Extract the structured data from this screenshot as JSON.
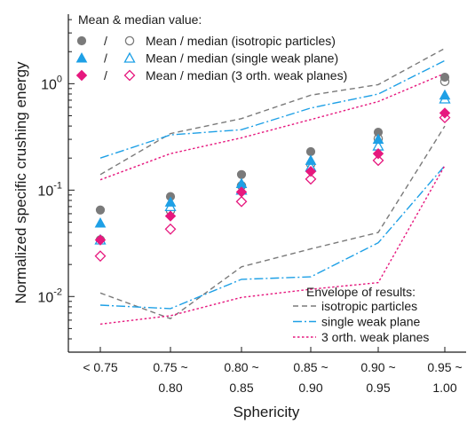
{
  "chart_data": {
    "type": "scatter",
    "xlabel": "Sphericity",
    "ylabel": "Normalized specific crushing energy",
    "yscale": "log",
    "ylim": [
      0.003,
      4.5
    ],
    "y_ticks": [
      {
        "value": 0.01,
        "base": "10",
        "exp": "-2"
      },
      {
        "value": 0.1,
        "base": "10",
        "exp": "-1"
      },
      {
        "value": 1,
        "base": "10",
        "exp": "0"
      }
    ],
    "categories": [
      {
        "line1": "< 0.75",
        "line2": ""
      },
      {
        "line1": "0.75 ~",
        "line2": "0.80"
      },
      {
        "line1": "0.80 ~",
        "line2": "0.85"
      },
      {
        "line1": "0.85 ~",
        "line2": "0.90"
      },
      {
        "line1": "0.90 ~",
        "line2": "0.95"
      },
      {
        "line1": "0.95 ~",
        "line2": "1.00"
      }
    ],
    "marker_legend": {
      "title": "Mean & median value:",
      "separator": "/",
      "placement": "top-left"
    },
    "envelope_legend": {
      "title": "Envelope of results:",
      "placement": "bottom-right"
    },
    "series": [
      {
        "name": "Mean / median (isotropic particles)",
        "envelope_name": "isotropic particles",
        "color": "#7a7a7a",
        "marker": "circle",
        "mean": [
          0.065,
          0.087,
          0.14,
          0.23,
          0.35,
          1.15
        ],
        "median": [
          0.034,
          0.064,
          0.11,
          0.175,
          0.305,
          1.05
        ],
        "envelope_upper": [
          0.14,
          0.34,
          0.47,
          0.78,
          0.98,
          2.15
        ],
        "envelope_lower": [
          0.0108,
          0.0062,
          0.019,
          0.028,
          0.04,
          0.4
        ],
        "envelope_dash": "6,4"
      },
      {
        "name": "Mean / median (single weak plane)",
        "envelope_name": "single weak plane",
        "color": "#1ea0e6",
        "marker": "triangle",
        "mean": [
          0.049,
          0.077,
          0.115,
          0.19,
          0.3,
          0.78
        ],
        "median": [
          0.034,
          0.07,
          0.1,
          0.165,
          0.26,
          0.72
        ],
        "envelope_upper": [
          0.2,
          0.33,
          0.37,
          0.59,
          0.8,
          1.65
        ],
        "envelope_lower": [
          0.0083,
          0.0077,
          0.0145,
          0.0153,
          0.032,
          0.17
        ],
        "envelope_dash": "10,3,2,3"
      },
      {
        "name": "Mean / median (3 orth. weak planes)",
        "envelope_name": "3 orth. weak planes",
        "color": "#e6187e",
        "marker": "diamond",
        "mean": [
          0.034,
          0.057,
          0.096,
          0.15,
          0.22,
          0.53
        ],
        "median": [
          0.024,
          0.043,
          0.078,
          0.127,
          0.19,
          0.48
        ],
        "envelope_upper": [
          0.125,
          0.22,
          0.31,
          0.46,
          0.68,
          1.25
        ],
        "envelope_lower": [
          0.0055,
          0.0066,
          0.0098,
          0.0117,
          0.0135,
          0.17
        ],
        "envelope_dash": "2.5,2.5"
      }
    ]
  }
}
